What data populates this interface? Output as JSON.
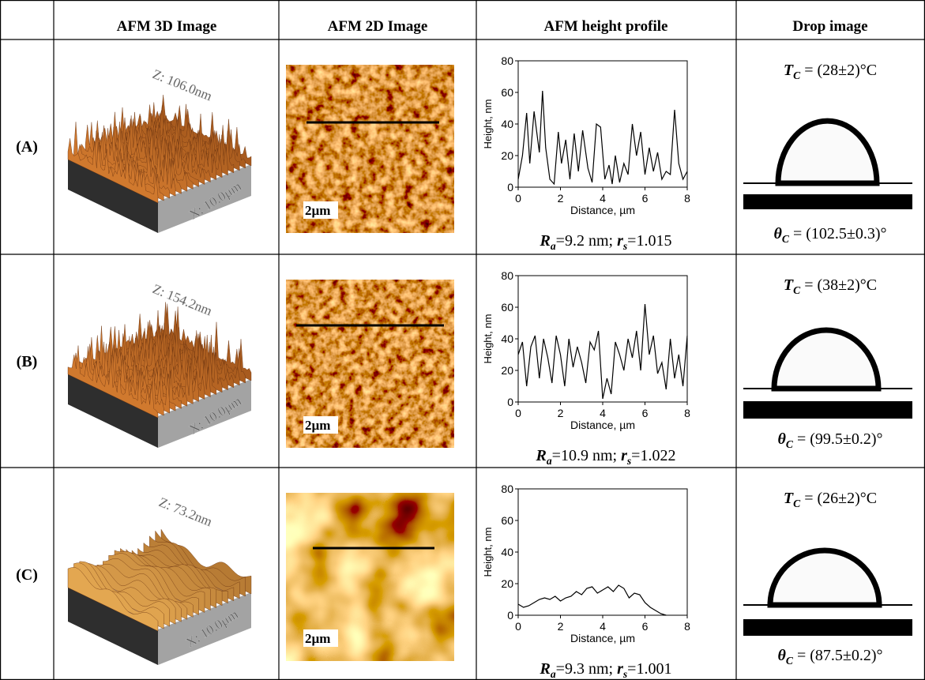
{
  "header": {
    "columns": [
      "AFM 3D Image",
      "AFM 2D Image",
      "AFM height profile",
      "Drop image"
    ]
  },
  "rows": [
    {
      "label": "(A)",
      "afm_3d": {
        "z_label": "Z: 106.0nm",
        "x_label": "X: 10.0µm"
      },
      "afm_2d": {
        "scale_bar": "2µm"
      },
      "profile": {
        "type": "line",
        "x_label": "Distance, µm",
        "y_label": "Height, nm",
        "xlim": [
          0,
          8
        ],
        "ylim": [
          0,
          80
        ],
        "xticks": [
          0,
          2,
          4,
          6,
          8
        ],
        "yticks": [
          0,
          20,
          40,
          60,
          80
        ],
        "color": "#000000",
        "x": [
          0,
          0.2,
          0.4,
          0.55,
          0.75,
          1.0,
          1.15,
          1.3,
          1.5,
          1.7,
          1.9,
          2.05,
          2.25,
          2.45,
          2.65,
          2.85,
          3.05,
          3.3,
          3.5,
          3.7,
          3.9,
          4.1,
          4.3,
          4.45,
          4.6,
          4.8,
          5.0,
          5.2,
          5.4,
          5.6,
          5.8,
          6.0,
          6.2,
          6.4,
          6.6,
          6.8,
          7.0,
          7.2,
          7.4,
          7.6,
          7.8,
          8.0
        ],
        "values": [
          5,
          20,
          47,
          15,
          48,
          22,
          61,
          25,
          5,
          2,
          35,
          15,
          30,
          5,
          34,
          10,
          36,
          12,
          3,
          40,
          38,
          5,
          14,
          2,
          20,
          3,
          15,
          8,
          40,
          20,
          35,
          8,
          25,
          10,
          22,
          5,
          10,
          8,
          49,
          15,
          5,
          10
        ]
      },
      "roughness": {
        "ra": {
          "symbol": "R",
          "subscript": "a",
          "text": "=9.2 nm; "
        },
        "rs": {
          "symbol": "r",
          "subscript": "s",
          "text": "=1.015"
        }
      },
      "drop": {
        "tc": {
          "symbol": "T",
          "subscript": "C",
          "text": " = (28±2)°C"
        },
        "theta": {
          "symbol": "θ",
          "subscript": "C",
          "text": " = (102.5±0.3)°"
        }
      }
    },
    {
      "label": "(B)",
      "afm_3d": {
        "z_label": "Z: 154.2nm",
        "x_label": "X: 10.0µm"
      },
      "afm_2d": {
        "scale_bar": "2µm"
      },
      "profile": {
        "type": "line",
        "x_label": "Distance, µm",
        "y_label": "Height, nm",
        "xlim": [
          0,
          8
        ],
        "ylim": [
          0,
          80
        ],
        "xticks": [
          0,
          2,
          4,
          6,
          8
        ],
        "yticks": [
          0,
          20,
          40,
          60,
          80
        ],
        "color": "#000000",
        "x": [
          0,
          0.2,
          0.4,
          0.6,
          0.8,
          1.0,
          1.2,
          1.4,
          1.6,
          1.8,
          2.0,
          2.2,
          2.4,
          2.6,
          2.8,
          3.0,
          3.2,
          3.4,
          3.6,
          3.8,
          4.0,
          4.2,
          4.4,
          4.6,
          4.8,
          5.0,
          5.2,
          5.4,
          5.6,
          5.8,
          6.0,
          6.2,
          6.4,
          6.6,
          6.8,
          7.0,
          7.2,
          7.4,
          7.6,
          7.8,
          8.0
        ],
        "values": [
          30,
          38,
          10,
          35,
          42,
          15,
          40,
          28,
          12,
          42,
          30,
          10,
          40,
          22,
          35,
          25,
          12,
          38,
          33,
          45,
          2,
          15,
          5,
          38,
          30,
          20,
          40,
          28,
          45,
          20,
          62,
          30,
          42,
          18,
          25,
          8,
          40,
          15,
          30,
          10,
          42
        ]
      },
      "roughness": {
        "ra": {
          "symbol": "R",
          "subscript": "a",
          "text": "=10.9 nm; "
        },
        "rs": {
          "symbol": "r",
          "subscript": "s",
          "text": "=1.022"
        }
      },
      "drop": {
        "tc": {
          "symbol": "T",
          "subscript": "C",
          "text": " = (38±2)°C"
        },
        "theta": {
          "symbol": "θ",
          "subscript": "C",
          "text": " = (99.5±0.2)°"
        }
      }
    },
    {
      "label": "(C)",
      "afm_3d": {
        "z_label": "Z: 73.2nm",
        "x_label": "X: 10.0µm"
      },
      "afm_2d": {
        "scale_bar": "2µm"
      },
      "profile": {
        "type": "line",
        "x_label": "Distance, µm",
        "y_label": "Height, nm",
        "xlim": [
          0,
          8
        ],
        "ylim": [
          0,
          80
        ],
        "xticks": [
          0,
          2,
          4,
          6,
          8
        ],
        "yticks": [
          0,
          20,
          40,
          60,
          80
        ],
        "color": "#000000",
        "x": [
          0,
          0.25,
          0.5,
          0.75,
          1.0,
          1.25,
          1.5,
          1.75,
          2.0,
          2.25,
          2.5,
          2.75,
          3.0,
          3.25,
          3.5,
          3.75,
          4.0,
          4.25,
          4.5,
          4.75,
          5.0,
          5.25,
          5.5,
          5.75,
          6.0,
          6.25,
          6.5,
          6.75,
          7.0
        ],
        "values": [
          7,
          5,
          6,
          8,
          10,
          11,
          10,
          12,
          9,
          11,
          12,
          15,
          13,
          17,
          18,
          14,
          16,
          18,
          15,
          19,
          17,
          11,
          14,
          13,
          8,
          5,
          3,
          1,
          0
        ]
      },
      "roughness": {
        "ra": {
          "symbol": "R",
          "subscript": "a",
          "text": "=9.3 nm; "
        },
        "rs": {
          "symbol": "r",
          "subscript": "s",
          "text": "=1.001"
        }
      },
      "drop": {
        "tc": {
          "symbol": "T",
          "subscript": "C",
          "text": " = (26±2)°C"
        },
        "theta": {
          "symbol": "θ",
          "subscript": "C",
          "text": " = (87.5±0.2)°"
        }
      }
    }
  ]
}
